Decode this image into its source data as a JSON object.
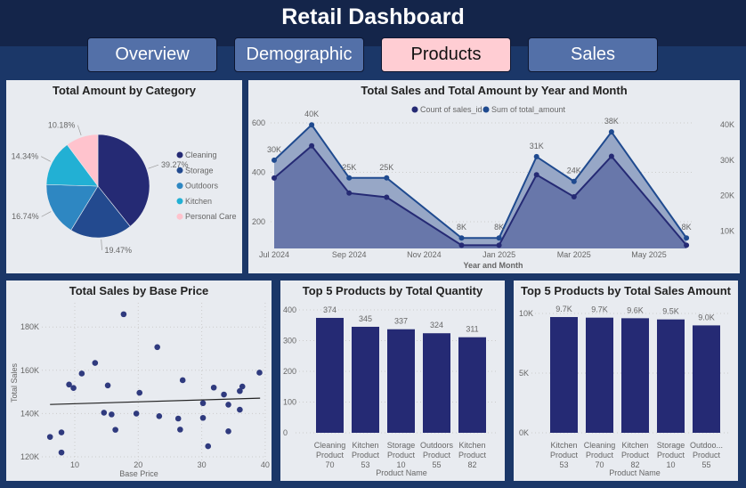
{
  "header": {
    "title": "Retail Dashboard"
  },
  "tabs": [
    {
      "label": "Overview"
    },
    {
      "label": "Demographic"
    },
    {
      "label": "Products",
      "active": true
    },
    {
      "label": "Sales"
    }
  ],
  "colors": {
    "navy": "#252a74",
    "active_tab": "#ffcdd3",
    "tab": "#5370a8",
    "panel": "#e8ebf0"
  },
  "chart_data": [
    {
      "type": "pie",
      "title": "Total Amount by Category",
      "legend_position": "right",
      "slices": [
        {
          "name": "Cleaning",
          "value": 39.27,
          "label": "39.27%",
          "color": "#252a74"
        },
        {
          "name": "Storage",
          "value": 19.47,
          "label": "19.47%",
          "color": "#234a8f"
        },
        {
          "name": "Outdoors",
          "value": 16.74,
          "label": "16.74%",
          "color": "#2e87c2"
        },
        {
          "name": "Kitchen",
          "value": 14.34,
          "label": "14.34%",
          "color": "#22b0d4"
        },
        {
          "name": "Personal Care",
          "value": 10.18,
          "label": "10.18%",
          "color": "#ffc3cd"
        }
      ]
    },
    {
      "type": "area",
      "title": "Total Sales and Total Amount by Year and Month",
      "xlabel": "Year and Month",
      "legend_position": "top",
      "x": [
        "2024-07",
        "2024-08",
        "2024-09",
        "2024-10",
        "2024-12",
        "2025-01",
        "2025-02",
        "2025-03",
        "2025-04",
        "2025-06"
      ],
      "x_ticks": [
        "Jul 2024",
        "Sep 2024",
        "Nov 2024",
        "Jan 2025",
        "Mar 2025",
        "May 2025"
      ],
      "y_ticks_left": [
        "200",
        "400",
        "600"
      ],
      "y_ticks_right": [
        "10K",
        "20K",
        "30K",
        "40K"
      ],
      "series": [
        {
          "name": "Count of sales_id",
          "axis": "left",
          "color": "#252a74",
          "values": [
            377,
            507,
            316,
            299,
            105,
            105,
            390,
            301,
            465,
            105
          ]
        },
        {
          "name": "Sum of total_amount",
          "axis": "right",
          "color": "#1f4a8f",
          "values": [
            30000,
            40000,
            25000,
            25000,
            8000,
            8000,
            31000,
            24000,
            38000,
            8000
          ],
          "labels": [
            "30K",
            "40K",
            "25K",
            "25K",
            "8K",
            "8K",
            "31K",
            "24K",
            "38K",
            "8K"
          ]
        }
      ]
    },
    {
      "type": "scatter",
      "title": "Total Sales by Base Price",
      "xlabel": "Base Price",
      "ylabel": "Total Sales",
      "x_ticks": [
        "10",
        "20",
        "30",
        "40"
      ],
      "y_ticks": [
        "120K",
        "140K",
        "160K",
        "180K"
      ],
      "trend": [
        [
          6.1,
          144200
        ],
        [
          39.2,
          147100
        ]
      ],
      "points": [
        [
          6.1,
          129200
        ],
        [
          7.9,
          131300
        ],
        [
          7.9,
          122000
        ],
        [
          9.1,
          153400
        ],
        [
          9.8,
          151800
        ],
        [
          11.1,
          158500
        ],
        [
          13.2,
          163400
        ],
        [
          14.6,
          140400
        ],
        [
          15.2,
          153000
        ],
        [
          15.8,
          139600
        ],
        [
          16.4,
          132500
        ],
        [
          17.7,
          185900
        ],
        [
          19.7,
          140000
        ],
        [
          20.2,
          149600
        ],
        [
          23.0,
          170700
        ],
        [
          23.3,
          138800
        ],
        [
          26.3,
          137700
        ],
        [
          26.6,
          132600
        ],
        [
          27.0,
          155400
        ],
        [
          30.2,
          144800
        ],
        [
          30.2,
          138000
        ],
        [
          31.0,
          124900
        ],
        [
          31.9,
          152000
        ],
        [
          33.5,
          148800
        ],
        [
          34.2,
          144100
        ],
        [
          34.2,
          131800
        ],
        [
          36.0,
          141800
        ],
        [
          36.0,
          150400
        ],
        [
          36.4,
          152500
        ],
        [
          39.1,
          158900
        ]
      ]
    },
    {
      "type": "bar",
      "title": "Top 5 Products by Total Quantity",
      "xlabel": "Product Name",
      "y_ticks": [
        "0",
        "100",
        "200",
        "300",
        "400"
      ],
      "ylim": [
        0,
        400
      ],
      "categories": [
        [
          "Cleaning",
          "Product",
          "70"
        ],
        [
          "Kitchen",
          "Product",
          "53"
        ],
        [
          "Storage",
          "Product",
          "10"
        ],
        [
          "Outdoors",
          "Product",
          "55"
        ],
        [
          "Kitchen",
          "Product",
          "82"
        ]
      ],
      "values": [
        374,
        345,
        337,
        324,
        311
      ],
      "labels": [
        "374",
        "345",
        "337",
        "324",
        "311"
      ]
    },
    {
      "type": "bar",
      "title": "Top 5 Products by Total Sales Amount",
      "xlabel": "Product Name",
      "y_ticks": [
        "0K",
        "5K",
        "10K"
      ],
      "ylim": [
        0,
        10000
      ],
      "categories": [
        [
          "Kitchen",
          "Product",
          "53"
        ],
        [
          "Cleaning",
          "Product",
          "70"
        ],
        [
          "Kitchen",
          "Product",
          "82"
        ],
        [
          "Storage",
          "Product",
          "10"
        ],
        [
          "Outdoo...",
          "Product",
          "55"
        ]
      ],
      "values": [
        9700,
        9650,
        9600,
        9500,
        9000
      ],
      "labels": [
        "9.7K",
        "9.7K",
        "9.6K",
        "9.5K",
        "9.0K"
      ]
    }
  ]
}
